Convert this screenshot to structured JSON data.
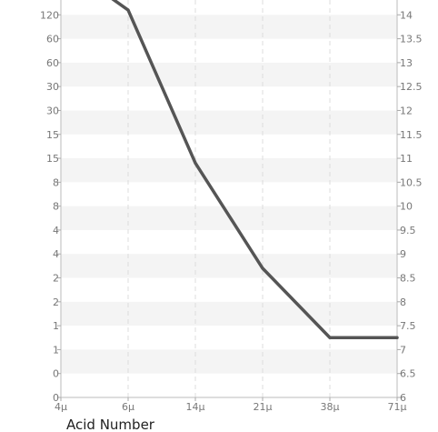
{
  "chart_data": {
    "type": "line",
    "title": "",
    "xlabel": "Acid Number",
    "ylabel": "",
    "x_ticks": [
      "4μ",
      "6μ",
      "14μ",
      "21μ",
      "38μ",
      "71μ"
    ],
    "y_left_ticks": [
      "0",
      "0",
      "1",
      "1",
      "2",
      "2",
      "4",
      "4",
      "8",
      "8",
      "15",
      "15",
      "30",
      "30",
      "60",
      "60",
      "120"
    ],
    "y_right_ticks": [
      "6",
      "6.5",
      "7",
      "7.5",
      "8",
      "8.5",
      "9",
      "9.5",
      "10",
      "10.5",
      "11",
      "11.5",
      "12",
      "12.5",
      "13",
      "13.5",
      "14"
    ],
    "y_right_range": [
      6,
      14.5
    ],
    "grid": true,
    "band_color": "#f4f4f4",
    "series": [
      {
        "color": "#555555",
        "x": [
          "4μ",
          "6μ",
          "14μ",
          "21μ",
          "38μ",
          "71μ"
        ],
        "y_right": [
          15.1,
          14.1,
          10.9,
          8.7,
          7.25,
          7.25
        ]
      }
    ]
  }
}
